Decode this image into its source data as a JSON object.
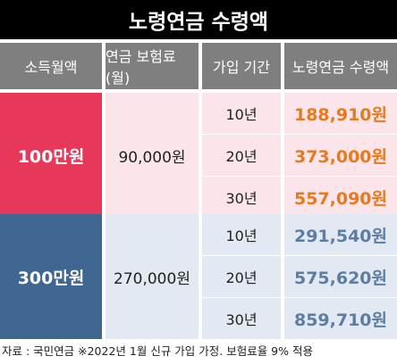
{
  "title": "노령연금 수령액",
  "chart_data": {
    "type": "table",
    "columns": [
      "소득월액",
      "연금 보험료(월)",
      "가입 기간",
      "노령연금 수령액"
    ],
    "groups": [
      {
        "income": "100만원",
        "premium": "90,000원",
        "rows": [
          {
            "period": "10년",
            "amount": "188,910원"
          },
          {
            "period": "20년",
            "amount": "373,000원"
          },
          {
            "period": "30년",
            "amount": "557,090원"
          }
        ]
      },
      {
        "income": "300만원",
        "premium": "270,000원",
        "rows": [
          {
            "period": "10년",
            "amount": "291,540원"
          },
          {
            "period": "20년",
            "amount": "575,620원"
          },
          {
            "period": "30년",
            "amount": "859,710원"
          }
        ]
      }
    ]
  },
  "footnote": "자료 : 국민연금 ※2022년 1월 신규 가입 가정. 보험료율 9% 적용",
  "colors": {
    "title_bg": "#000000",
    "header_bg": "#7f7f7f",
    "group1_accent": "#e8385a",
    "group1_light": "#fbe4ea",
    "group1_amount": "#e87a1c",
    "group2_accent": "#3f6591",
    "group2_light": "#e2e9f2",
    "group2_amount": "#5d7ea2"
  }
}
